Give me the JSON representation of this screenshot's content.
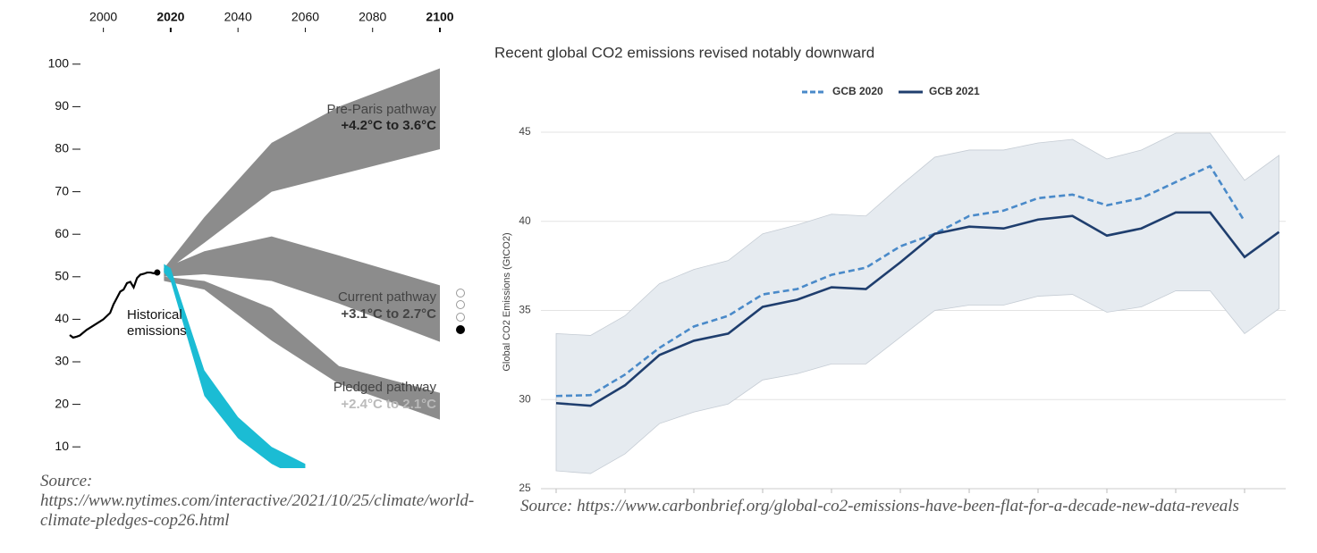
{
  "chart_data": [
    {
      "type": "fan",
      "xlim": [
        1990,
        2100
      ],
      "ylim": [
        5,
        105
      ],
      "xticks": [
        2000,
        2020,
        2040,
        2060,
        2080,
        2100
      ],
      "bold_xticks": [
        2020,
        2100
      ],
      "yticks": [
        10,
        20,
        30,
        40,
        50,
        60,
        70,
        80,
        90,
        100
      ],
      "series": [
        {
          "name": "Historical emissions",
          "color": "#000000",
          "x": [
            1990,
            1991,
            1992,
            1993,
            1995,
            1997,
            1999,
            2000,
            2002,
            2003,
            2004,
            2005,
            2006,
            2007,
            2008,
            2009,
            2010,
            2011,
            2012,
            2013,
            2014,
            2015,
            2016
          ],
          "values": [
            36.3,
            35.7,
            35.9,
            36.2,
            37.5,
            38.5,
            39.5,
            40,
            41.5,
            43.5,
            45,
            46.5,
            47,
            48.5,
            48.8,
            47.5,
            49.7,
            50.5,
            50.7,
            51,
            51,
            50.8,
            51
          ]
        }
      ],
      "bands": [
        {
          "name": "Pre-Paris pathway",
          "label": "+4.2°C to 3.6°C",
          "color": "#8c8c8c",
          "x": [
            2018,
            2030,
            2050,
            2070,
            2100
          ],
          "lower": [
            51,
            58,
            70,
            74,
            80
          ],
          "upper": [
            52,
            64,
            81.5,
            90,
            99
          ]
        },
        {
          "name": "Current pathway",
          "label": "+3.1°C to 2.7°C",
          "color": "#8c8c8c",
          "x": [
            2018,
            2030,
            2050,
            2070,
            2100
          ],
          "lower": [
            50,
            50.6,
            49,
            43.7,
            34.7
          ],
          "upper": [
            52,
            56,
            59.5,
            55,
            48
          ]
        },
        {
          "name": "Pledged pathway",
          "label": "+2.4°C to 2.1°C",
          "color": "#8c8c8c",
          "x": [
            2018,
            2030,
            2050,
            2070,
            2100
          ],
          "lower": [
            49,
            47,
            35,
            24.8,
            16.4
          ],
          "upper": [
            50,
            49,
            42.6,
            29,
            22.7
          ]
        },
        {
          "color": "#1bbcd4",
          "x": [
            2018,
            2020,
            2030,
            2040,
            2050,
            2060
          ],
          "lower": [
            51,
            49,
            22,
            12,
            6,
            2
          ],
          "upper": [
            53,
            52,
            28,
            17,
            10,
            6
          ]
        }
      ],
      "source": "Source: https://www.nytimes.com/interactive/2021/10/25/climate/world-climate-pledges-cop26.html"
    },
    {
      "type": "line",
      "title": "Recent global CO2 emissions revised notably downward",
      "y_label": "Global CO2 Emissions (GtCO2)",
      "categories": [
        null,
        null,
        null,
        null,
        null,
        null,
        null,
        null,
        null,
        null,
        null,
        null,
        null,
        null,
        null,
        null,
        null,
        null,
        null,
        null,
        null,
        null
      ],
      "ylim": [
        25,
        45
      ],
      "yticks": [
        25,
        30,
        35,
        40,
        45
      ],
      "grid": true,
      "band": {
        "color": "#e6ebf0",
        "lower": [
          26.0,
          25.85,
          26.95,
          28.65,
          29.3,
          29.75,
          31.1,
          31.45,
          32.0,
          32.0,
          33.5,
          35.0,
          35.3,
          35.3,
          35.8,
          35.9,
          34.9,
          35.2,
          36.1,
          36.1,
          33.7,
          35.1
        ],
        "upper": [
          33.7,
          33.6,
          34.7,
          36.5,
          37.3,
          37.8,
          39.3,
          39.8,
          40.4,
          40.3,
          42.0,
          43.6,
          44.0,
          44.0,
          44.4,
          44.6,
          43.5,
          44.0,
          44.95,
          44.95,
          42.3,
          43.7
        ]
      },
      "series": [
        {
          "name": "GCB 2020",
          "color": "#4a8ac9",
          "dashed": true,
          "values": [
            30.2,
            30.25,
            31.4,
            32.9,
            34.1,
            34.7,
            35.9,
            36.2,
            37.0,
            37.4,
            38.6,
            39.3,
            40.3,
            40.6,
            41.3,
            41.5,
            40.9,
            41.3,
            42.2,
            43.1,
            40.0,
            null
          ]
        },
        {
          "name": "GCB 2021",
          "color": "#1f3e6e",
          "dashed": false,
          "values": [
            29.8,
            29.65,
            30.8,
            32.5,
            33.3,
            33.7,
            35.2,
            35.6,
            36.3,
            36.2,
            37.7,
            39.3,
            39.7,
            39.6,
            40.1,
            40.3,
            39.2,
            39.6,
            40.5,
            40.5,
            38.0,
            39.4
          ]
        }
      ],
      "source": "Source: https://www.carbonbrief.org/global-co2-emissions-have-been-flat-for-a-decade-new-data-reveals"
    }
  ]
}
